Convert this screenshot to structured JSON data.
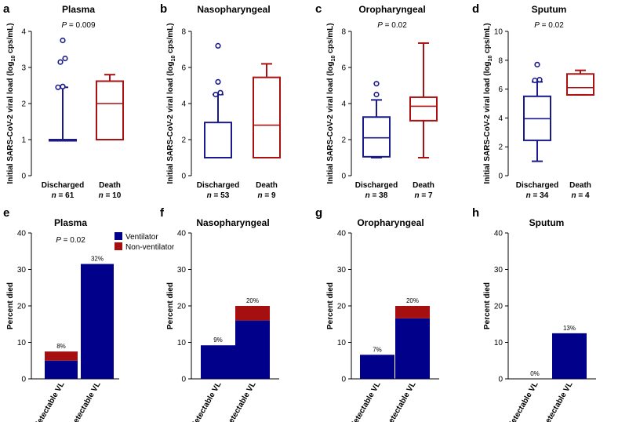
{
  "chart_data": [
    {
      "type": "box",
      "panel": "a",
      "title": "Plasma",
      "pvalue": "P = 0.009",
      "ylabel": "Initial SARS-CoV-2 viral load (log10 cps/mL)",
      "ylim": [
        0,
        4
      ],
      "yticks": [
        "0",
        "1",
        "2",
        "3",
        "4"
      ],
      "groups": [
        {
          "name": "Discharged",
          "n": "n = 61",
          "color": "#1a1a8c",
          "whisker_low": 1,
          "q1": 1,
          "median": 1,
          "q3": 1,
          "whisker_high": 2.45,
          "outliers": [
            2.45,
            2.47,
            2.47,
            3.15,
            3.25,
            3.75
          ]
        },
        {
          "name": "Death",
          "n": "n = 10",
          "color": "#aa1111",
          "whisker_low": 1,
          "q1": 1,
          "median": 2.0,
          "q3": 2.62,
          "whisker_high": 2.8,
          "outliers": []
        }
      ]
    },
    {
      "type": "box",
      "panel": "b",
      "title": "Nasopharyngeal",
      "pvalue": "",
      "ylabel": "Initial SARS-CoV-2 viral load (log10 cps/mL)",
      "ylim": [
        0,
        8
      ],
      "yticks": [
        "0",
        "2",
        "4",
        "6",
        "8"
      ],
      "groups": [
        {
          "name": "Discharged",
          "n": "n = 53",
          "color": "#1a1a8c",
          "whisker_low": 1,
          "q1": 1,
          "median": 1,
          "q3": 2.95,
          "whisker_high": 4.5,
          "outliers": [
            4.5,
            4.6,
            5.2,
            7.2
          ]
        },
        {
          "name": "Death",
          "n": "n = 9",
          "color": "#aa1111",
          "whisker_low": 1,
          "q1": 1,
          "median": 2.8,
          "q3": 5.45,
          "whisker_high": 6.2,
          "outliers": []
        }
      ]
    },
    {
      "type": "box",
      "panel": "c",
      "title": "Oropharyngeal",
      "pvalue": "P = 0.02",
      "ylabel": "Initial SARS-CoV-2 viral load (log10 cps/mL)",
      "ylim": [
        0,
        8
      ],
      "yticks": [
        "0",
        "2",
        "4",
        "6",
        "8"
      ],
      "groups": [
        {
          "name": "Discharged",
          "n": "n = 38",
          "color": "#1a1a8c",
          "whisker_low": 1,
          "q1": 1.05,
          "median": 2.1,
          "q3": 3.25,
          "whisker_high": 4.2,
          "outliers": [
            4.5,
            5.1
          ]
        },
        {
          "name": "Death",
          "n": "n = 7",
          "color": "#aa1111",
          "whisker_low": 1,
          "q1": 3.05,
          "median": 3.85,
          "q3": 4.35,
          "whisker_high": 7.35,
          "outliers": []
        }
      ]
    },
    {
      "type": "box",
      "panel": "d",
      "title": "Sputum",
      "pvalue": "P = 0.02",
      "ylabel": "Initial SARS-CoV-2 viral load (log10 cps/mL)",
      "ylim": [
        0,
        10
      ],
      "yticks": [
        "0",
        "2",
        "4",
        "6",
        "8",
        "10"
      ],
      "groups": [
        {
          "name": "Discharged",
          "n": "n = 34",
          "color": "#1a1a8c",
          "whisker_low": 1,
          "q1": 2.45,
          "median": 3.95,
          "q3": 5.5,
          "whisker_high": 6.5,
          "outliers": [
            6.6,
            6.65,
            7.7
          ]
        },
        {
          "name": "Death",
          "n": "n = 4",
          "color": "#aa1111",
          "whisker_low": 5.6,
          "q1": 5.6,
          "median": 6.1,
          "q3": 7.05,
          "whisker_high": 7.3,
          "outliers": []
        }
      ]
    },
    {
      "type": "stacked-bar",
      "panel": "e",
      "title": "Plasma",
      "pvalue": "P = 0.02",
      "ylabel": "Percent died",
      "ylim": [
        0,
        40
      ],
      "yticks": [
        "0",
        "10",
        "20",
        "30",
        "40"
      ],
      "categories": [
        "Undetectable VL",
        "Detectable VL"
      ],
      "series": [
        {
          "name": "Ventilator",
          "color": "#00008b",
          "values": [
            5.0,
            31.5
          ]
        },
        {
          "name": "Non-ventilator",
          "color": "#a50f0f",
          "values": [
            2.5,
            0
          ]
        }
      ],
      "labels": [
        "8%",
        "32%"
      ],
      "legend": true
    },
    {
      "type": "stacked-bar",
      "panel": "f",
      "title": "Nasopharyngeal",
      "pvalue": "",
      "ylabel": "Percent died",
      "ylim": [
        0,
        40
      ],
      "yticks": [
        "0",
        "10",
        "20",
        "30",
        "40"
      ],
      "categories": [
        "Undetectable VL",
        "Detectable VL"
      ],
      "series": [
        {
          "name": "Ventilator",
          "color": "#00008b",
          "values": [
            9.2,
            16.0
          ]
        },
        {
          "name": "Non-ventilator",
          "color": "#a50f0f",
          "values": [
            0,
            4.0
          ]
        }
      ],
      "labels": [
        "9%",
        "20%"
      ],
      "legend": false
    },
    {
      "type": "stacked-bar",
      "panel": "g",
      "title": "Oropharyngeal",
      "pvalue": "",
      "ylabel": "Percent died",
      "ylim": [
        0,
        40
      ],
      "yticks": [
        "0",
        "10",
        "20",
        "30",
        "40"
      ],
      "categories": [
        "Undetectable VL",
        "Detectable VL"
      ],
      "series": [
        {
          "name": "Ventilator",
          "color": "#00008b",
          "values": [
            6.6,
            16.6
          ]
        },
        {
          "name": "Non-ventilator",
          "color": "#a50f0f",
          "values": [
            0,
            3.4
          ]
        }
      ],
      "labels": [
        "7%",
        "20%"
      ],
      "legend": false
    },
    {
      "type": "stacked-bar",
      "panel": "h",
      "title": "Sputum",
      "pvalue": "",
      "ylabel": "Percent died",
      "ylim": [
        0,
        40
      ],
      "yticks": [
        "0",
        "10",
        "20",
        "30",
        "40"
      ],
      "categories": [
        "Undetectable VL",
        "Detectable VL"
      ],
      "series": [
        {
          "name": "Ventilator",
          "color": "#00008b",
          "values": [
            0,
            12.5
          ]
        },
        {
          "name": "Non-ventilator",
          "color": "#a50f0f",
          "values": [
            0,
            0
          ]
        }
      ],
      "labels": [
        "0%",
        "13%"
      ],
      "legend": false
    }
  ]
}
